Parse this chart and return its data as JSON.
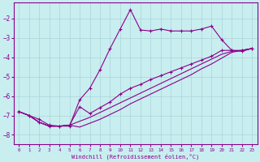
{
  "xlabel": "Windchill (Refroidissement éolien,°C)",
  "background_color": "#c8eef0",
  "grid_color": "#aad4d8",
  "line_color": "#8B008B",
  "xlim": [
    -0.5,
    23.5
  ],
  "ylim": [
    -8.5,
    -1.2
  ],
  "yticks": [
    -8,
    -7,
    -6,
    -5,
    -4,
    -3,
    -2
  ],
  "xticks": [
    0,
    1,
    2,
    3,
    4,
    5,
    6,
    7,
    8,
    9,
    10,
    11,
    12,
    13,
    14,
    15,
    16,
    17,
    18,
    19,
    20,
    21,
    22,
    23
  ],
  "line1_x": [
    0,
    1,
    2,
    3,
    4,
    5,
    6,
    7,
    8,
    9,
    10,
    11,
    12,
    13,
    14,
    15,
    16,
    17,
    18,
    19,
    20,
    21,
    22,
    23
  ],
  "line1_y": [
    -6.8,
    -7.0,
    -7.2,
    -7.5,
    -7.55,
    -7.55,
    -6.2,
    -5.6,
    -4.65,
    -3.55,
    -2.55,
    -1.55,
    -2.6,
    -2.65,
    -2.55,
    -2.65,
    -2.65,
    -2.65,
    -2.55,
    -2.4,
    -3.1,
    -3.65,
    -3.7,
    -3.55
  ],
  "line2_x": [
    0,
    1,
    2,
    3,
    4,
    5,
    6,
    7,
    8,
    9,
    10,
    11,
    12,
    13,
    14,
    15,
    16,
    17,
    18,
    19,
    20,
    21,
    22,
    23
  ],
  "line2_y": [
    -6.8,
    -7.0,
    -7.35,
    -7.55,
    -7.55,
    -7.5,
    -6.55,
    -6.9,
    -6.6,
    -6.3,
    -5.9,
    -5.6,
    -5.4,
    -5.15,
    -4.95,
    -4.75,
    -4.55,
    -4.35,
    -4.15,
    -3.95,
    -3.65,
    -3.65,
    -3.65,
    -3.55
  ],
  "line3_x": [
    0,
    1,
    2,
    3,
    4,
    5,
    6,
    7,
    8,
    9,
    10,
    11,
    12,
    13,
    14,
    15,
    16,
    17,
    18,
    19,
    20,
    21,
    22,
    23
  ],
  "line3_y": [
    -6.8,
    -7.0,
    -7.35,
    -7.55,
    -7.55,
    -7.5,
    -7.3,
    -7.1,
    -6.85,
    -6.6,
    -6.35,
    -6.1,
    -5.85,
    -5.6,
    -5.35,
    -5.1,
    -4.85,
    -4.6,
    -4.35,
    -4.1,
    -3.85,
    -3.7,
    -3.65,
    -3.55
  ],
  "line4_x": [
    0,
    1,
    2,
    3,
    4,
    5,
    6,
    7,
    8,
    9,
    10,
    11,
    12,
    13,
    14,
    15,
    16,
    17,
    18,
    19,
    20,
    21,
    22,
    23
  ],
  "line4_y": [
    -6.8,
    -7.0,
    -7.35,
    -7.55,
    -7.55,
    -7.5,
    -7.6,
    -7.4,
    -7.2,
    -6.95,
    -6.7,
    -6.4,
    -6.15,
    -5.9,
    -5.65,
    -5.4,
    -5.15,
    -4.9,
    -4.6,
    -4.35,
    -4.05,
    -3.75,
    -3.65,
    -3.55
  ]
}
